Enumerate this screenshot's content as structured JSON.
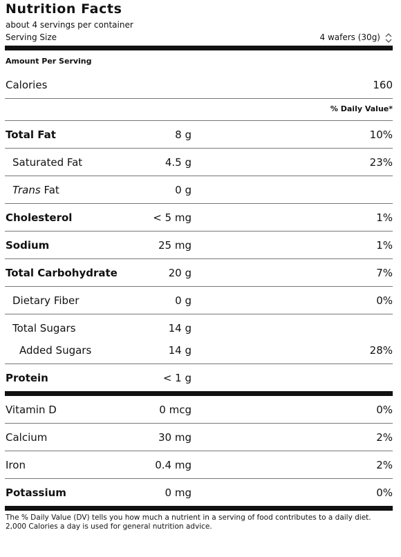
{
  "header": {
    "title": "Nutrition Facts",
    "servings": "about 4 servings per container",
    "serving_size_label": "Serving Size",
    "serving_size_value": "4 wafers (30g)"
  },
  "amount_per_serving": "Amount Per Serving",
  "calories": {
    "label": "Calories",
    "value": "160"
  },
  "daily_value_header": "% Daily Value*",
  "nutrients": [
    {
      "name": "Total Fat",
      "amount": "8 g",
      "dv": "10%"
    },
    {
      "name": "Saturated Fat",
      "amount": "4.5 g",
      "dv": "23%"
    },
    {
      "name_italic": "Trans",
      "name": "Fat",
      "amount": "0 g"
    },
    {
      "name": "Cholesterol",
      "amount": "< 5 mg",
      "dv": "1%"
    },
    {
      "name": "Sodium",
      "amount": "25 mg",
      "dv": "1%"
    },
    {
      "name": "Total Carbohydrate",
      "amount": "20 g",
      "dv": "7%"
    },
    {
      "name": "Dietary Fiber",
      "amount": "0 g",
      "dv": "0%"
    },
    {
      "name": "Total Sugars",
      "amount": "14 g"
    },
    {
      "name": "Added Sugars",
      "amount": "14 g",
      "dv": "28%"
    },
    {
      "name": "Protein",
      "amount": "< 1 g"
    }
  ],
  "vitamins": [
    {
      "name": "Vitamin D",
      "amount": "0 mcg",
      "dv": "0%"
    },
    {
      "name": "Calcium",
      "amount": "30 mg",
      "dv": "2%"
    },
    {
      "name": "Iron",
      "amount": "0.4 mg",
      "dv": "2%"
    },
    {
      "name": "Potassium",
      "amount": "0 mg",
      "dv": "0%"
    }
  ],
  "footnote": [
    "The % Daily Value (DV) tells you how much a nutrient in a serving of food contributes to a daily diet.",
    "2,000 Calories a day is used for general nutrition advice."
  ]
}
